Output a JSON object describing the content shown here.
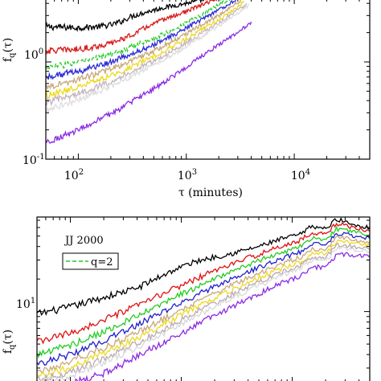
{
  "chart_data": [
    {
      "type": "line",
      "xscale": "log",
      "yscale": "log",
      "xlim": [
        50,
        50000
      ],
      "ylim": [
        0.1,
        4.5
      ],
      "xticks": [
        {
          "value": 100,
          "base": "10",
          "exp": "2"
        },
        {
          "value": 1000,
          "base": "10",
          "exp": "3"
        },
        {
          "value": 10000,
          "base": "10",
          "exp": "4"
        }
      ],
      "yticks": [
        {
          "value": 0.1,
          "base": "10",
          "exp": "-1"
        },
        {
          "value": 1,
          "base": "10",
          "exp": "0"
        }
      ],
      "xlabel": "τ (minutes)",
      "ylabel_main": "f",
      "ylabel_sub": "q",
      "ylabel_tail": "(τ)",
      "series": [
        {
          "color": "#000000",
          "dash": "",
          "x": [
            50,
            100,
            150,
            200,
            250,
            300,
            400,
            600,
            1000,
            1500,
            2200
          ],
          "y": [
            2.3,
            2.25,
            2.3,
            2.4,
            2.6,
            2.9,
            3.2,
            3.6,
            4.0,
            4.4,
            4.5
          ]
        },
        {
          "color": "#d81c1c",
          "dash": "",
          "x": [
            50,
            100,
            150,
            200,
            300,
            400,
            600,
            1000,
            1500,
            2000
          ],
          "y": [
            1.3,
            1.35,
            1.45,
            1.55,
            1.85,
            2.2,
            2.7,
            3.3,
            4.0,
            4.5
          ]
        },
        {
          "color": "#22cc22",
          "dash": "5,3",
          "x": [
            50,
            100,
            200,
            300,
            500,
            800,
            1200,
            1800,
            2600
          ],
          "y": [
            0.88,
            0.98,
            1.2,
            1.4,
            1.75,
            2.2,
            2.8,
            3.6,
            4.5
          ]
        },
        {
          "color": "#2a2ad8",
          "dash": "",
          "x": [
            50,
            100,
            200,
            300,
            500,
            800,
            1200,
            2000,
            3000
          ],
          "y": [
            0.7,
            0.8,
            1.0,
            1.18,
            1.5,
            1.95,
            2.5,
            3.4,
            4.5
          ]
        },
        {
          "color": "#c8a878",
          "dash": "",
          "x": [
            50,
            100,
            200,
            300,
            500,
            800,
            1200,
            2000,
            3200
          ],
          "y": [
            0.55,
            0.66,
            0.84,
            1.0,
            1.3,
            1.7,
            2.2,
            3.0,
            4.3
          ]
        },
        {
          "color": "#ecd920",
          "dash": "",
          "x": [
            50,
            100,
            200,
            300,
            500,
            800,
            1200,
            2000,
            3400
          ],
          "y": [
            0.45,
            0.55,
            0.72,
            0.88,
            1.15,
            1.5,
            1.95,
            2.7,
            4.1
          ]
        },
        {
          "color": "#c4b4be",
          "dash": "",
          "x": [
            50,
            100,
            200,
            300,
            500,
            800,
            1200,
            2000,
            3600
          ],
          "y": [
            0.38,
            0.47,
            0.63,
            0.78,
            1.02,
            1.35,
            1.78,
            2.5,
            3.9
          ]
        },
        {
          "color": "#dddddd",
          "dash": "",
          "x": [
            50,
            100,
            200,
            300,
            500,
            800,
            1200,
            2000,
            3800
          ],
          "y": [
            0.32,
            0.41,
            0.56,
            0.7,
            0.93,
            1.25,
            1.65,
            2.35,
            3.8
          ]
        },
        {
          "color": "#8a2be2",
          "dash": "",
          "x": [
            50,
            100,
            200,
            300,
            500,
            800,
            1200,
            2000,
            4000
          ],
          "y": [
            0.15,
            0.2,
            0.29,
            0.38,
            0.53,
            0.74,
            1.02,
            1.5,
            2.5
          ]
        }
      ]
    },
    {
      "type": "line",
      "xscale": "log",
      "yscale": "log",
      "xlim": [
        50,
        50000
      ],
      "ylim": [
        2.2,
        75
      ],
      "xticks": [],
      "yticks": [
        {
          "value": 10,
          "base": "10",
          "exp": "1"
        }
      ],
      "xlabel": "",
      "ylabel_main": "f",
      "ylabel_sub": "q",
      "ylabel_tail": "(τ)",
      "annotation": "JJ 2000",
      "legend": {
        "position": "top-left",
        "entries": [
          {
            "label": "q=2",
            "color": "#22cc22",
            "dash": "5,3"
          }
        ]
      },
      "series": [
        {
          "color": "#000000",
          "dash": "",
          "x": [
            50,
            100,
            200,
            400,
            700,
            1000,
            1500,
            2000,
            3000,
            5000,
            8000,
            12000,
            15000,
            20000,
            25000,
            30000,
            40000,
            50000
          ],
          "y": [
            9.5,
            11,
            13.5,
            16.5,
            22,
            26,
            30,
            32,
            35,
            40,
            47,
            52,
            62,
            58,
            72,
            68,
            62,
            60
          ]
        },
        {
          "color": "#e01010",
          "dash": "",
          "x": [
            50,
            100,
            200,
            400,
            700,
            1000,
            1500,
            2000,
            3000,
            5000,
            8000,
            12000,
            15000,
            20000,
            25000,
            30000,
            40000,
            50000
          ],
          "y": [
            5.2,
            6.3,
            8.3,
            11.3,
            14.8,
            17.5,
            21,
            24,
            28,
            34,
            40,
            46,
            54,
            52,
            65,
            63,
            58,
            56
          ]
        },
        {
          "color": "#22cc22",
          "dash": "",
          "x": [
            50,
            100,
            200,
            400,
            700,
            1000,
            1500,
            2000,
            3000,
            5000,
            8000,
            12000,
            15000,
            20000,
            25000,
            30000,
            40000,
            50000
          ],
          "y": [
            4.0,
            4.9,
            6.5,
            9.0,
            12,
            14.5,
            17.5,
            20,
            24,
            29.5,
            35,
            40,
            48,
            46,
            58,
            57,
            53,
            52
          ]
        },
        {
          "color": "#2020d0",
          "dash": "",
          "x": [
            50,
            100,
            200,
            400,
            700,
            1000,
            1500,
            2000,
            3000,
            5000,
            8000,
            12000,
            15000,
            20000,
            25000,
            30000,
            40000,
            50000
          ],
          "y": [
            3.3,
            4.0,
            5.4,
            7.5,
            10,
            12,
            14.8,
            17,
            20.5,
            25.5,
            31,
            36,
            43,
            41,
            53,
            52,
            49,
            48
          ]
        },
        {
          "color": "#c8a878",
          "dash": "",
          "x": [
            50,
            100,
            200,
            400,
            700,
            1000,
            1500,
            2000,
            3000,
            5000,
            8000,
            12000,
            15000,
            20000,
            25000,
            30000,
            40000,
            50000
          ],
          "y": [
            2.8,
            3.4,
            4.6,
            6.4,
            8.6,
            10.4,
            12.8,
            14.8,
            18,
            22.5,
            27.5,
            32,
            38,
            37,
            48,
            48,
            45,
            44
          ]
        },
        {
          "color": "#ecd920",
          "dash": "",
          "x": [
            50,
            100,
            200,
            400,
            700,
            1000,
            1500,
            2000,
            3000,
            5000,
            8000,
            12000,
            15000,
            20000,
            25000,
            30000,
            40000,
            50000
          ],
          "y": [
            2.5,
            3.0,
            4.1,
            5.7,
            7.7,
            9.3,
            11.5,
            13.3,
            16.2,
            20.5,
            25,
            29,
            35,
            34,
            44,
            44,
            42,
            41
          ]
        },
        {
          "color": "#b8a8b2",
          "dash": "",
          "x": [
            50,
            100,
            200,
            400,
            700,
            1000,
            1500,
            2000,
            3000,
            5000,
            8000,
            12000,
            15000,
            20000,
            25000,
            30000,
            40000,
            50000
          ],
          "y": [
            2.35,
            2.7,
            3.7,
            5.1,
            6.9,
            8.4,
            10.4,
            12,
            14.7,
            18.7,
            23,
            27,
            32,
            31.5,
            41,
            41,
            39,
            38
          ]
        },
        {
          "color": "#d8d8d8",
          "dash": "",
          "x": [
            50,
            100,
            200,
            400,
            700,
            1000,
            1500,
            2000,
            3000,
            5000,
            8000,
            12000,
            15000,
            20000,
            25000,
            30000,
            40000,
            50000
          ],
          "y": [
            2.25,
            2.5,
            3.4,
            4.7,
            6.3,
            7.7,
            9.6,
            11.1,
            13.6,
            17.4,
            21.5,
            25.5,
            30,
            29.5,
            38,
            38.5,
            37,
            36
          ]
        },
        {
          "color": "#8a2be2",
          "dash": "",
          "x": [
            100,
            150,
            200,
            300,
            400,
            700,
            1000,
            1500,
            2000,
            3000,
            5000,
            8000,
            12000,
            15000,
            20000,
            25000,
            30000,
            40000,
            50000
          ],
          "y": [
            2.2,
            2.4,
            2.7,
            3.3,
            3.9,
            5.2,
            6.3,
            7.9,
            9.2,
            11.4,
            14.6,
            18.3,
            21.6,
            26,
            25.5,
            33,
            34,
            33,
            32
          ]
        }
      ]
    }
  ]
}
